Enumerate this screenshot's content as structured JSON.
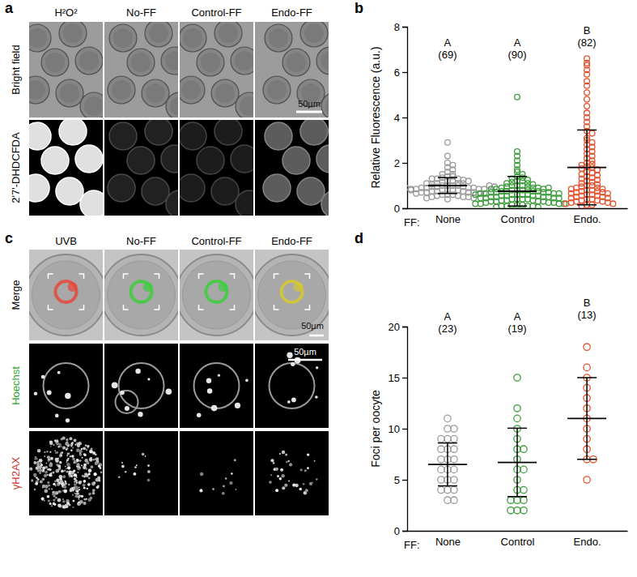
{
  "panel_labels": [
    "a",
    "b",
    "c",
    "d"
  ],
  "image_panels": [
    {
      "column_titles": [
        "H²O²",
        "No-FF",
        "Control-FF",
        "Endo-FF"
      ],
      "row_titles": [
        "Bright field",
        "2'7'-DHDCFDA"
      ],
      "scale_bar": "50µm"
    },
    {
      "column_titles": [
        "UVB",
        "No-FF",
        "Control-FF",
        "Endo-FF"
      ],
      "row_titles": [
        "Merge",
        "Hoechst",
        "γH2AX"
      ],
      "scale_bar": "50µm"
    }
  ],
  "chart_data": [
    {
      "type": "scatter",
      "ylabel": "Relative Fluorescence (a.u.)",
      "xlabel": "FF:",
      "categories": [
        "None",
        "Control",
        "Endo."
      ],
      "colors": [
        "#9b9b9b",
        "#3c9d3c",
        "#e2542f"
      ],
      "marker": "circle",
      "grid": false,
      "ylim": [
        0,
        8
      ],
      "yticks": [
        0,
        2,
        4,
        6,
        8
      ],
      "group_letters": [
        "A",
        "A",
        "B"
      ],
      "n_labels": [
        "(69)",
        "(90)",
        "(82)"
      ],
      "means": [
        1.0,
        0.75,
        1.8
      ],
      "errors": [
        0.35,
        0.65,
        1.65
      ],
      "values": [
        [
          2.9,
          2.3,
          2.0,
          1.9,
          1.8,
          1.7,
          1.6,
          1.5,
          1.5,
          1.4,
          1.4,
          1.35,
          1.3,
          1.3,
          1.25,
          1.2,
          1.2,
          1.15,
          1.1,
          1.1,
          1.1,
          1.05,
          1.0,
          1.0,
          1.0,
          1.0,
          0.95,
          0.95,
          0.95,
          0.9,
          0.9,
          0.9,
          0.9,
          0.85,
          0.85,
          0.85,
          0.85,
          0.8,
          0.8,
          0.8,
          0.8,
          0.75,
          0.75,
          0.75,
          0.7,
          0.7,
          0.7,
          0.7,
          0.65,
          0.65,
          0.65,
          0.6,
          0.6,
          0.6,
          0.55,
          0.55,
          0.5,
          0.5,
          0.5,
          0.45,
          0.45,
          0.4,
          1.2,
          1.0,
          0.9,
          1.1,
          0.8,
          1.3,
          0.95
        ],
        [
          4.9,
          2.5,
          2.3,
          2.1,
          1.9,
          1.7,
          1.6,
          1.5,
          1.4,
          1.35,
          1.3,
          1.25,
          1.2,
          1.2,
          1.15,
          1.1,
          1.1,
          1.05,
          1.0,
          1.0,
          1.0,
          0.95,
          0.95,
          0.9,
          0.9,
          0.9,
          0.85,
          0.85,
          0.85,
          0.8,
          0.8,
          0.8,
          0.8,
          0.75,
          0.75,
          0.75,
          0.75,
          0.7,
          0.7,
          0.7,
          0.7,
          0.65,
          0.65,
          0.65,
          0.65,
          0.6,
          0.6,
          0.6,
          0.6,
          0.55,
          0.55,
          0.55,
          0.55,
          0.5,
          0.5,
          0.5,
          0.5,
          0.45,
          0.45,
          0.45,
          0.45,
          0.4,
          0.4,
          0.4,
          0.4,
          0.35,
          0.35,
          0.35,
          0.3,
          0.3,
          0.3,
          0.3,
          0.25,
          0.25,
          0.25,
          0.2,
          0.2,
          0.2,
          0.2,
          0.15,
          0.15,
          0.15,
          0.1,
          0.1,
          0.1,
          0.1,
          0.05,
          0.05,
          0.9,
          0.6
        ],
        [
          6.6,
          6.4,
          6.3,
          6.1,
          5.9,
          5.6,
          5.4,
          5.1,
          4.8,
          4.5,
          4.2,
          4.0,
          3.8,
          3.6,
          3.4,
          3.3,
          3.1,
          3.0,
          2.9,
          2.8,
          2.7,
          2.6,
          2.5,
          2.4,
          2.3,
          2.2,
          2.1,
          2.0,
          1.95,
          1.9,
          1.85,
          1.8,
          1.75,
          1.7,
          1.6,
          1.55,
          1.5,
          1.45,
          1.4,
          1.35,
          1.3,
          1.25,
          1.2,
          1.15,
          1.1,
          1.05,
          1.0,
          1.0,
          0.95,
          0.9,
          0.9,
          0.85,
          0.85,
          0.8,
          0.8,
          0.75,
          0.75,
          0.7,
          0.7,
          0.65,
          0.65,
          0.6,
          0.6,
          0.55,
          0.55,
          0.5,
          0.5,
          0.45,
          0.45,
          0.4,
          0.4,
          0.35,
          0.35,
          0.3,
          0.3,
          0.25,
          0.25,
          0.2,
          0.2,
          0.15,
          0.15,
          0.1
        ]
      ]
    },
    {
      "type": "scatter",
      "ylabel": "Foci per oocyte",
      "xlabel": "FF:",
      "categories": [
        "None",
        "Control",
        "Endo."
      ],
      "colors": [
        "#9b9b9b",
        "#3c9d3c",
        "#e2542f"
      ],
      "marker": "circle",
      "grid": false,
      "ylim": [
        0,
        20
      ],
      "yticks": [
        0,
        5,
        10,
        15,
        20
      ],
      "group_letters": [
        "A",
        "A",
        "B"
      ],
      "n_labels": [
        "(23)",
        "(19)",
        "(13)"
      ],
      "means": [
        6.5,
        6.7,
        11
      ],
      "errors": [
        2.1,
        3.35,
        4.0
      ],
      "values": [
        [
          11,
          10,
          10,
          9,
          9,
          9,
          8,
          8,
          8,
          7,
          7,
          7,
          6,
          6,
          6,
          5,
          5,
          5,
          4,
          4,
          4,
          3,
          3
        ],
        [
          15,
          12,
          11,
          10,
          9,
          8,
          8,
          7,
          6,
          6,
          5,
          4,
          4,
          3,
          3,
          3,
          2,
          2,
          2
        ],
        [
          18,
          16,
          15,
          14,
          13,
          12,
          11,
          10,
          9,
          8,
          7,
          7,
          5
        ]
      ]
    }
  ]
}
